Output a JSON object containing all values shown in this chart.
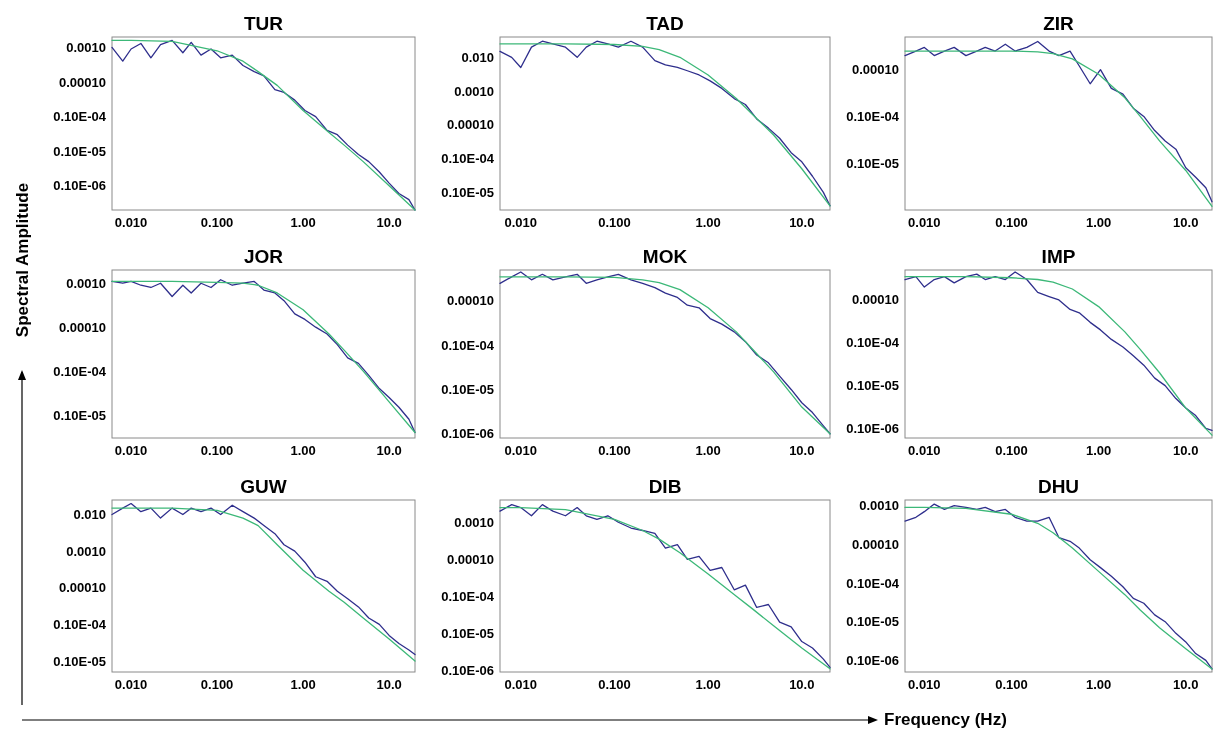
{
  "chart_data": [
    {
      "type": "line",
      "title": "TUR",
      "log": "xy",
      "line_style": "solid",
      "xlim": [
        0.006,
        20
      ],
      "ylim": [
        2e-08,
        0.002
      ],
      "xticks": [
        {
          "value": 0.01,
          "label": "0.010"
        },
        {
          "value": 0.1,
          "label": "0.100"
        },
        {
          "value": 1,
          "label": "1.00"
        },
        {
          "value": 10,
          "label": "10.0"
        }
      ],
      "yticks": [
        {
          "value": 0.001,
          "label": "0.0010"
        },
        {
          "value": 0.0001,
          "label": "0.00010"
        },
        {
          "value": 1e-05,
          "label": "0.10E-04"
        },
        {
          "value": 1e-06,
          "label": "0.10E-05"
        },
        {
          "value": 1e-07,
          "label": "0.10E-06"
        }
      ],
      "x": [
        0.006,
        0.008,
        0.01,
        0.013,
        0.017,
        0.022,
        0.03,
        0.04,
        0.05,
        0.065,
        0.085,
        0.11,
        0.15,
        0.2,
        0.27,
        0.35,
        0.47,
        0.6,
        0.8,
        1.05,
        1.4,
        1.9,
        2.5,
        3.3,
        4.4,
        5.8,
        7.7,
        10,
        13,
        17,
        20
      ],
      "series": [
        {
          "color": "#2e2e8c",
          "values": [
            0.001,
            0.0004,
            0.0009,
            0.0013,
            0.0005,
            0.0012,
            0.0016,
            0.0007,
            0.0014,
            0.0006,
            0.0009,
            0.0005,
            0.0006,
            0.0003,
            0.0002,
            0.00015,
            6e-05,
            5e-05,
            3e-05,
            1.5e-05,
            1e-05,
            4e-06,
            3e-06,
            1.5e-06,
            8e-07,
            5e-07,
            2.5e-07,
            1.2e-07,
            6e-08,
            4e-08,
            2e-08
          ]
        },
        {
          "color": "#3cb878",
          "x": [
            0.006,
            0.01,
            0.03,
            0.1,
            0.2,
            0.3,
            0.5,
            1,
            2,
            3,
            5,
            10,
            20
          ],
          "values": [
            0.0016,
            0.0016,
            0.0015,
            0.0008,
            0.0004,
            0.0002,
            8e-05,
            1.5e-05,
            3.5e-06,
            1.5e-06,
            5e-07,
            1e-07,
            2e-08
          ]
        }
      ]
    },
    {
      "type": "line",
      "title": "TAD",
      "log": "xy",
      "line_style": "solid",
      "xlim": [
        0.006,
        20
      ],
      "ylim": [
        3e-07,
        0.04
      ],
      "xticks": [
        {
          "value": 0.01,
          "label": "0.010"
        },
        {
          "value": 0.1,
          "label": "0.100"
        },
        {
          "value": 1,
          "label": "1.00"
        },
        {
          "value": 10,
          "label": "10.0"
        }
      ],
      "yticks": [
        {
          "value": 0.01,
          "label": "0.010"
        },
        {
          "value": 0.001,
          "label": "0.0010"
        },
        {
          "value": 0.0001,
          "label": "0.00010"
        },
        {
          "value": 1e-05,
          "label": "0.10E-04"
        },
        {
          "value": 1e-06,
          "label": "0.10E-05"
        }
      ],
      "x": [
        0.006,
        0.008,
        0.01,
        0.013,
        0.017,
        0.022,
        0.03,
        0.04,
        0.05,
        0.065,
        0.085,
        0.11,
        0.15,
        0.2,
        0.27,
        0.35,
        0.47,
        0.6,
        0.8,
        1.05,
        1.4,
        1.9,
        2.5,
        3.3,
        4.4,
        5.8,
        7.7,
        10,
        13,
        17,
        20
      ],
      "series": [
        {
          "color": "#2e2e8c",
          "values": [
            0.015,
            0.01,
            0.005,
            0.02,
            0.03,
            0.025,
            0.02,
            0.01,
            0.02,
            0.03,
            0.025,
            0.02,
            0.03,
            0.02,
            0.008,
            0.006,
            0.005,
            0.004,
            0.003,
            0.002,
            0.0012,
            0.0006,
            0.0004,
            0.00015,
            8e-05,
            4e-05,
            1.5e-05,
            8e-06,
            3e-06,
            1e-06,
            4e-07
          ]
        },
        {
          "color": "#3cb878",
          "x": [
            0.006,
            0.01,
            0.03,
            0.1,
            0.2,
            0.3,
            0.5,
            1,
            2,
            3,
            5,
            10,
            20
          ],
          "values": [
            0.025,
            0.025,
            0.025,
            0.024,
            0.021,
            0.017,
            0.01,
            0.003,
            0.0006,
            0.0002,
            5e-05,
            5e-06,
            4e-07
          ]
        }
      ]
    },
    {
      "type": "line",
      "title": "ZIR",
      "log": "xy",
      "line_style": "solid",
      "xlim": [
        0.006,
        20
      ],
      "ylim": [
        1e-07,
        0.0005
      ],
      "xticks": [
        {
          "value": 0.01,
          "label": "0.010"
        },
        {
          "value": 0.1,
          "label": "0.100"
        },
        {
          "value": 1,
          "label": "1.00"
        },
        {
          "value": 10,
          "label": "10.0"
        }
      ],
      "yticks": [
        {
          "value": 0.0001,
          "label": "0.00010"
        },
        {
          "value": 1e-05,
          "label": "0.10E-04"
        },
        {
          "value": 1e-06,
          "label": "0.10E-05"
        }
      ],
      "x": [
        0.006,
        0.008,
        0.01,
        0.013,
        0.017,
        0.022,
        0.03,
        0.04,
        0.05,
        0.065,
        0.085,
        0.11,
        0.15,
        0.2,
        0.27,
        0.35,
        0.47,
        0.6,
        0.8,
        1.05,
        1.4,
        1.9,
        2.5,
        3.3,
        4.4,
        5.8,
        7.7,
        10,
        13,
        17,
        20
      ],
      "series": [
        {
          "color": "#2e2e8c",
          "values": [
            0.0002,
            0.00025,
            0.0003,
            0.0002,
            0.00025,
            0.0003,
            0.0002,
            0.00025,
            0.0003,
            0.00025,
            0.00035,
            0.00025,
            0.0003,
            0.0004,
            0.00025,
            0.0002,
            0.00025,
            0.00012,
            5e-05,
            0.0001,
            4e-05,
            3e-05,
            1.5e-05,
            1e-05,
            5e-06,
            3e-06,
            2e-06,
            8e-07,
            5e-07,
            3e-07,
            1.5e-07
          ]
        },
        {
          "color": "#3cb878",
          "x": [
            0.006,
            0.01,
            0.03,
            0.1,
            0.2,
            0.3,
            0.5,
            1,
            2,
            3,
            5,
            10,
            20
          ],
          "values": [
            0.00025,
            0.00025,
            0.00025,
            0.00025,
            0.00024,
            0.00022,
            0.00017,
            8e-05,
            2.5e-05,
            1e-05,
            3e-06,
            7e-07,
            1.2e-07
          ]
        }
      ]
    },
    {
      "type": "line",
      "title": "JOR",
      "ylabel": "Spectral Amplitude",
      "log": "xy",
      "line_style": "solid",
      "xlim": [
        0.006,
        20
      ],
      "ylim": [
        3e-07,
        0.002
      ],
      "xticks": [
        {
          "value": 0.01,
          "label": "0.010"
        },
        {
          "value": 0.1,
          "label": "0.100"
        },
        {
          "value": 1,
          "label": "1.00"
        },
        {
          "value": 10,
          "label": "10.0"
        }
      ],
      "yticks": [
        {
          "value": 0.001,
          "label": "0.0010"
        },
        {
          "value": 0.0001,
          "label": "0.00010"
        },
        {
          "value": 1e-05,
          "label": "0.10E-04"
        },
        {
          "value": 1e-06,
          "label": "0.10E-05"
        }
      ],
      "x": [
        0.006,
        0.008,
        0.01,
        0.013,
        0.017,
        0.022,
        0.03,
        0.04,
        0.05,
        0.065,
        0.085,
        0.11,
        0.15,
        0.2,
        0.27,
        0.35,
        0.47,
        0.6,
        0.8,
        1.05,
        1.4,
        1.9,
        2.5,
        3.3,
        4.4,
        5.8,
        7.7,
        10,
        13,
        17,
        20
      ],
      "series": [
        {
          "color": "#2e2e8c",
          "values": [
            0.0011,
            0.001,
            0.0011,
            0.0009,
            0.0008,
            0.001,
            0.0005,
            0.0009,
            0.0006,
            0.001,
            0.0008,
            0.0012,
            0.0009,
            0.001,
            0.0011,
            0.0007,
            0.0006,
            0.0004,
            0.0002,
            0.00015,
            0.0001,
            7e-05,
            4e-05,
            2e-05,
            1.5e-05,
            8e-06,
            4e-06,
            2.5e-06,
            1.5e-06,
            8e-07,
            4e-07
          ]
        },
        {
          "color": "#3cb878",
          "x": [
            0.006,
            0.01,
            0.03,
            0.1,
            0.2,
            0.3,
            0.5,
            1,
            2,
            3,
            5,
            10,
            20
          ],
          "values": [
            0.0011,
            0.0011,
            0.0011,
            0.00105,
            0.001,
            0.0009,
            0.0006,
            0.00025,
            7e-05,
            3e-05,
            1e-05,
            2e-06,
            4e-07
          ]
        }
      ]
    },
    {
      "type": "line",
      "title": "MOK",
      "log": "xy",
      "line_style": "solid",
      "xlim": [
        0.006,
        20
      ],
      "ylim": [
        8e-08,
        0.0005
      ],
      "xticks": [
        {
          "value": 0.01,
          "label": "0.010"
        },
        {
          "value": 0.1,
          "label": "0.100"
        },
        {
          "value": 1,
          "label": "1.00"
        },
        {
          "value": 10,
          "label": "10.0"
        }
      ],
      "yticks": [
        {
          "value": 0.0001,
          "label": "0.00010"
        },
        {
          "value": 1e-05,
          "label": "0.10E-04"
        },
        {
          "value": 1e-06,
          "label": "0.10E-05"
        },
        {
          "value": 1e-07,
          "label": "0.10E-06"
        }
      ],
      "x": [
        0.006,
        0.008,
        0.01,
        0.013,
        0.017,
        0.022,
        0.03,
        0.04,
        0.05,
        0.065,
        0.085,
        0.11,
        0.15,
        0.2,
        0.27,
        0.35,
        0.47,
        0.6,
        0.8,
        1.05,
        1.4,
        1.9,
        2.5,
        3.3,
        4.4,
        5.8,
        7.7,
        10,
        13,
        17,
        20
      ],
      "series": [
        {
          "color": "#2e2e8c",
          "values": [
            0.00025,
            0.00035,
            0.00045,
            0.0003,
            0.0004,
            0.0003,
            0.00035,
            0.0004,
            0.00025,
            0.0003,
            0.00035,
            0.0004,
            0.0003,
            0.00025,
            0.0002,
            0.00015,
            0.00012,
            8e-05,
            7e-05,
            4e-05,
            3e-05,
            2e-05,
            1.2e-05,
            6e-06,
            4e-06,
            2e-06,
            1e-06,
            5e-07,
            3e-07,
            1.5e-07,
            1e-07
          ]
        },
        {
          "color": "#3cb878",
          "x": [
            0.006,
            0.01,
            0.03,
            0.1,
            0.2,
            0.3,
            0.5,
            1,
            2,
            3,
            5,
            10,
            20
          ],
          "values": [
            0.00035,
            0.00035,
            0.00035,
            0.00034,
            0.0003,
            0.00026,
            0.00018,
            7e-05,
            2e-05,
            8e-06,
            2.5e-06,
            4e-07,
            1e-07
          ]
        }
      ]
    },
    {
      "type": "line",
      "title": "IMP",
      "log": "xy",
      "line_style": "solid",
      "xlim": [
        0.006,
        20
      ],
      "ylim": [
        6e-08,
        0.0005
      ],
      "xticks": [
        {
          "value": 0.01,
          "label": "0.010"
        },
        {
          "value": 0.1,
          "label": "0.100"
        },
        {
          "value": 1,
          "label": "1.00"
        },
        {
          "value": 10,
          "label": "10.0"
        }
      ],
      "yticks": [
        {
          "value": 0.0001,
          "label": "0.00010"
        },
        {
          "value": 1e-05,
          "label": "0.10E-04"
        },
        {
          "value": 1e-06,
          "label": "0.10E-05"
        },
        {
          "value": 1e-07,
          "label": "0.10E-06"
        }
      ],
      "x": [
        0.006,
        0.008,
        0.01,
        0.013,
        0.017,
        0.022,
        0.03,
        0.04,
        0.05,
        0.065,
        0.085,
        0.11,
        0.15,
        0.2,
        0.27,
        0.35,
        0.47,
        0.6,
        0.8,
        1.05,
        1.4,
        1.9,
        2.5,
        3.3,
        4.4,
        5.8,
        7.7,
        10,
        13,
        17,
        20
      ],
      "series": [
        {
          "color": "#2e2e8c",
          "values": [
            0.0003,
            0.00035,
            0.0002,
            0.0003,
            0.00035,
            0.00025,
            0.00035,
            0.0004,
            0.0003,
            0.00035,
            0.0003,
            0.00045,
            0.0003,
            0.00015,
            0.00012,
            0.0001,
            6e-05,
            5e-05,
            3e-05,
            2e-05,
            1.2e-05,
            8e-06,
            5e-06,
            3e-06,
            1.5e-06,
            1e-06,
            5e-07,
            3e-07,
            2e-07,
            1e-07,
            9e-08
          ]
        },
        {
          "color": "#3cb878",
          "x": [
            0.006,
            0.01,
            0.03,
            0.1,
            0.2,
            0.3,
            0.5,
            1,
            2,
            3,
            5,
            10,
            20
          ],
          "values": [
            0.00035,
            0.00035,
            0.00035,
            0.00033,
            0.0003,
            0.00026,
            0.00018,
            7e-05,
            1.8e-05,
            7e-06,
            2e-06,
            3e-07,
            7e-08
          ]
        }
      ]
    },
    {
      "type": "line",
      "title": "GUW",
      "log": "xy",
      "line_style": "solid",
      "xlim": [
        0.006,
        20
      ],
      "ylim": [
        5e-07,
        0.025
      ],
      "xticks": [
        {
          "value": 0.01,
          "label": "0.010"
        },
        {
          "value": 0.1,
          "label": "0.100"
        },
        {
          "value": 1,
          "label": "1.00"
        },
        {
          "value": 10,
          "label": "10.0"
        }
      ],
      "yticks": [
        {
          "value": 0.01,
          "label": "0.010"
        },
        {
          "value": 0.001,
          "label": "0.0010"
        },
        {
          "value": 0.0001,
          "label": "0.00010"
        },
        {
          "value": 1e-05,
          "label": "0.10E-04"
        },
        {
          "value": 1e-06,
          "label": "0.10E-05"
        }
      ],
      "x": [
        0.006,
        0.008,
        0.01,
        0.013,
        0.017,
        0.022,
        0.03,
        0.04,
        0.05,
        0.065,
        0.085,
        0.11,
        0.15,
        0.2,
        0.27,
        0.35,
        0.47,
        0.6,
        0.8,
        1.05,
        1.4,
        1.9,
        2.5,
        3.3,
        4.4,
        5.8,
        7.7,
        10,
        13,
        17,
        20
      ],
      "series": [
        {
          "color": "#2e2e8c",
          "values": [
            0.01,
            0.015,
            0.02,
            0.012,
            0.015,
            0.008,
            0.015,
            0.01,
            0.015,
            0.012,
            0.015,
            0.01,
            0.018,
            0.012,
            0.008,
            0.005,
            0.003,
            0.0015,
            0.001,
            0.0005,
            0.0002,
            0.00015,
            8e-05,
            5e-05,
            3e-05,
            1.5e-05,
            1e-05,
            5e-06,
            3e-06,
            2e-06,
            1.5e-06
          ]
        },
        {
          "color": "#3cb878",
          "x": [
            0.006,
            0.01,
            0.03,
            0.1,
            0.2,
            0.3,
            0.5,
            1,
            2,
            3,
            5,
            10,
            20
          ],
          "values": [
            0.015,
            0.015,
            0.015,
            0.013,
            0.008,
            0.005,
            0.0015,
            0.0003,
            8e-05,
            4e-05,
            1.5e-05,
            4e-06,
            1e-06
          ]
        }
      ]
    },
    {
      "type": "line",
      "title": "DIB",
      "xlabel": "Frequency (Hz)",
      "log": "xy",
      "line_style": "solid",
      "xlim": [
        0.006,
        20
      ],
      "ylim": [
        9e-08,
        0.004
      ],
      "xticks": [
        {
          "value": 0.01,
          "label": "0.010"
        },
        {
          "value": 0.1,
          "label": "0.100"
        },
        {
          "value": 1,
          "label": "1.00"
        },
        {
          "value": 10,
          "label": "10.0"
        }
      ],
      "yticks": [
        {
          "value": 0.001,
          "label": "0.0010"
        },
        {
          "value": 0.0001,
          "label": "0.00010"
        },
        {
          "value": 1e-05,
          "label": "0.10E-04"
        },
        {
          "value": 1e-06,
          "label": "0.10E-05"
        },
        {
          "value": 1e-07,
          "label": "0.10E-06"
        }
      ],
      "x": [
        0.006,
        0.008,
        0.01,
        0.013,
        0.017,
        0.022,
        0.03,
        0.04,
        0.05,
        0.065,
        0.085,
        0.11,
        0.15,
        0.2,
        0.27,
        0.35,
        0.47,
        0.6,
        0.8,
        1.05,
        1.4,
        1.9,
        2.5,
        3.3,
        4.4,
        5.8,
        7.7,
        10,
        13,
        17,
        20
      ],
      "series": [
        {
          "color": "#2e2e8c",
          "values": [
            0.002,
            0.003,
            0.0025,
            0.0015,
            0.003,
            0.002,
            0.0015,
            0.0025,
            0.0015,
            0.0012,
            0.0015,
            0.001,
            0.0007,
            0.0006,
            0.0005,
            0.0002,
            0.00025,
            0.0001,
            0.00012,
            5e-05,
            6e-05,
            1.5e-05,
            2e-05,
            5e-06,
            6e-06,
            2e-06,
            1.5e-06,
            6e-07,
            4e-07,
            2e-07,
            1.2e-07
          ]
        },
        {
          "color": "#3cb878",
          "x": [
            0.006,
            0.01,
            0.03,
            0.1,
            0.2,
            0.3,
            0.5,
            1,
            2,
            3,
            5,
            10,
            20
          ],
          "values": [
            0.0025,
            0.0025,
            0.0022,
            0.0012,
            0.0006,
            0.00035,
            0.00015,
            4e-05,
            1e-05,
            4.5e-06,
            1.6e-06,
            4e-07,
            1.1e-07
          ]
        }
      ]
    },
    {
      "type": "line",
      "title": "DHU",
      "log": "xy",
      "line_style": "solid",
      "xlim": [
        0.006,
        20
      ],
      "ylim": [
        5e-08,
        0.0014
      ],
      "xticks": [
        {
          "value": 0.01,
          "label": "0.010"
        },
        {
          "value": 0.1,
          "label": "0.100"
        },
        {
          "value": 1,
          "label": "1.00"
        },
        {
          "value": 10,
          "label": "10.0"
        }
      ],
      "yticks": [
        {
          "value": 0.001,
          "label": "0.0010"
        },
        {
          "value": 0.0001,
          "label": "0.00010"
        },
        {
          "value": 1e-05,
          "label": "0.10E-04"
        },
        {
          "value": 1e-06,
          "label": "0.10E-05"
        },
        {
          "value": 1e-07,
          "label": "0.10E-06"
        }
      ],
      "x": [
        0.006,
        0.008,
        0.01,
        0.013,
        0.017,
        0.022,
        0.03,
        0.04,
        0.05,
        0.065,
        0.085,
        0.11,
        0.15,
        0.2,
        0.27,
        0.35,
        0.47,
        0.6,
        0.8,
        1.05,
        1.4,
        1.9,
        2.5,
        3.3,
        4.4,
        5.8,
        7.7,
        10,
        13,
        17,
        20
      ],
      "series": [
        {
          "color": "#2e2e8c",
          "values": [
            0.0004,
            0.0005,
            0.0007,
            0.0011,
            0.0008,
            0.001,
            0.0009,
            0.0008,
            0.0009,
            0.0007,
            0.0008,
            0.0005,
            0.0004,
            0.0004,
            0.0005,
            0.00015,
            0.00012,
            8e-05,
            4e-05,
            2.5e-05,
            1.5e-05,
            8e-06,
            4e-06,
            3e-06,
            1.5e-06,
            1e-06,
            5e-07,
            3e-07,
            1.5e-07,
            1e-07,
            6e-08
          ]
        },
        {
          "color": "#3cb878",
          "x": [
            0.006,
            0.01,
            0.03,
            0.1,
            0.2,
            0.3,
            0.5,
            1,
            2,
            3,
            5,
            10,
            20
          ],
          "values": [
            0.0009,
            0.0009,
            0.00085,
            0.0006,
            0.00035,
            0.0002,
            8e-05,
            2e-05,
            5e-06,
            2e-06,
            7e-07,
            2e-07,
            6e-08
          ]
        }
      ]
    }
  ]
}
